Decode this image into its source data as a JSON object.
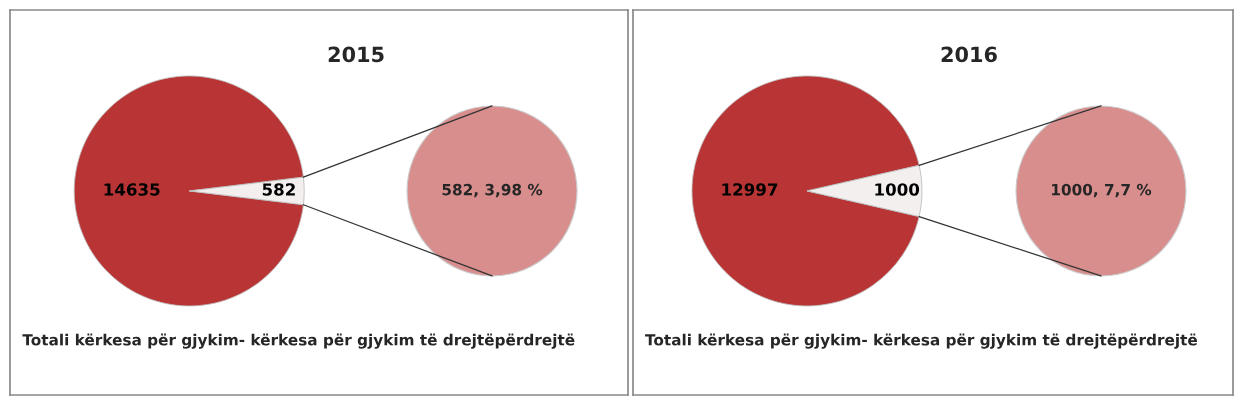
{
  "chart_data": [
    {
      "type": "pie",
      "title": "2015",
      "categories": [
        null,
        null
      ],
      "values": [
        14635,
        582
      ],
      "colors": [
        "#b93434",
        "#f3efef"
      ],
      "value_labels": [
        "14635",
        "582"
      ],
      "annotations": [
        "582, 3,98 %",
        "Totali kërkesa për gjykim- kërkesa për gjykim të drejtëpërdrejtë"
      ]
    },
    {
      "type": "pie",
      "title": "2016",
      "categories": [
        null,
        null
      ],
      "values": [
        12997,
        1000
      ],
      "colors": [
        "#b93434",
        "#f3efef"
      ],
      "value_labels": [
        "12997",
        "1000"
      ],
      "annotations": [
        "1000, 7,7 %",
        "Totali kërkesa për gjykim- kërkesa për gjykim të drejtëpërdrejtë"
      ]
    }
  ]
}
